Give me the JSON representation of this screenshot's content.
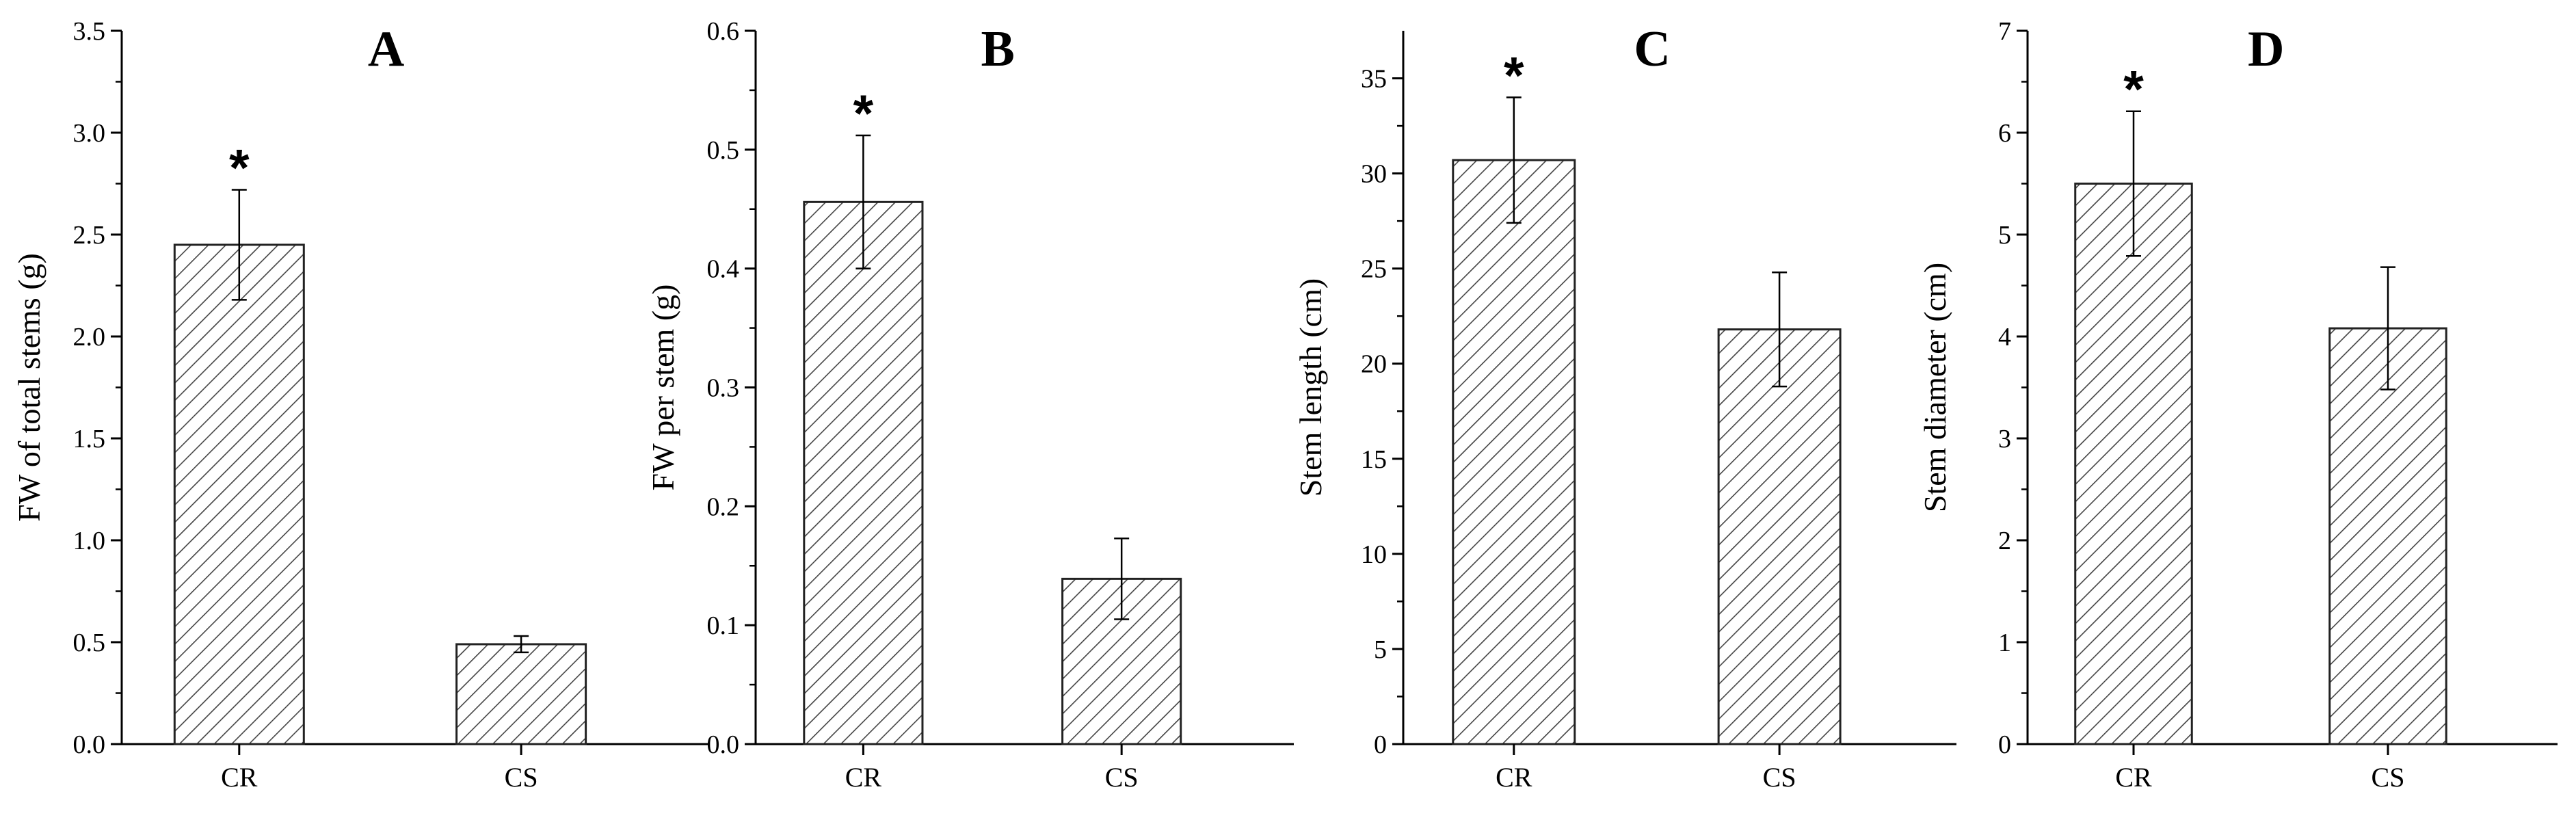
{
  "colors": {
    "axis": "#000000",
    "bar_edge": "#222222",
    "hatch": "#444444",
    "bar_fill": "#ffffff"
  },
  "chart_data": [
    {
      "type": "bar",
      "panel": "A",
      "title": "A",
      "xlabel": "",
      "ylabel": "FW of total stems (g)",
      "categories": [
        "CR",
        "CS"
      ],
      "values": [
        2.45,
        0.49
      ],
      "errors": [
        0.27,
        0.04
      ],
      "significance": [
        "*",
        ""
      ],
      "ylim": [
        0,
        3.5
      ],
      "yticks": [
        0,
        0.5,
        1.0,
        1.5,
        2.0,
        2.5,
        3.0,
        3.5
      ],
      "ytick_labels": [
        "0.0",
        "0.5",
        "1.0",
        "1.5",
        "2.0",
        "2.5",
        "3.0",
        "3.5"
      ]
    },
    {
      "type": "bar",
      "panel": "B",
      "title": "B",
      "xlabel": "",
      "ylabel": "FW per stem (g)",
      "categories": [
        "CR",
        "CS"
      ],
      "values": [
        0.456,
        0.139
      ],
      "errors": [
        0.056,
        0.034
      ],
      "significance": [
        "*",
        ""
      ],
      "ylim": [
        0,
        0.6
      ],
      "yticks": [
        0,
        0.1,
        0.2,
        0.3,
        0.4,
        0.5,
        0.6
      ],
      "ytick_labels": [
        "0.0",
        "0.1",
        "0.2",
        "0.3",
        "0.4",
        "0.5",
        "0.6"
      ]
    },
    {
      "type": "bar",
      "panel": "C",
      "title": "C",
      "xlabel": "",
      "ylabel": "Stem length (cm)",
      "categories": [
        "CR",
        "CS"
      ],
      "values": [
        30.7,
        21.8
      ],
      "errors": [
        3.3,
        3.0
      ],
      "significance": [
        "*",
        ""
      ],
      "ylim": [
        0,
        37.5
      ],
      "yticks": [
        0,
        5,
        10,
        15,
        20,
        25,
        30,
        35
      ],
      "ytick_labels": [
        "0",
        "5",
        "10",
        "15",
        "20",
        "25",
        "30",
        "35"
      ]
    },
    {
      "type": "bar",
      "panel": "D",
      "title": "D",
      "xlabel": "",
      "ylabel": "Stem diameter (cm)",
      "categories": [
        "CR",
        "CS"
      ],
      "values": [
        5.5,
        4.08
      ],
      "errors": [
        0.71,
        0.6
      ],
      "significance": [
        "*",
        ""
      ],
      "ylim": [
        0,
        7
      ],
      "yticks": [
        0,
        1,
        2,
        3,
        4,
        5,
        6,
        7
      ],
      "ytick_labels": [
        "0",
        "1",
        "2",
        "3",
        "4",
        "5",
        "6",
        "7"
      ]
    }
  ]
}
